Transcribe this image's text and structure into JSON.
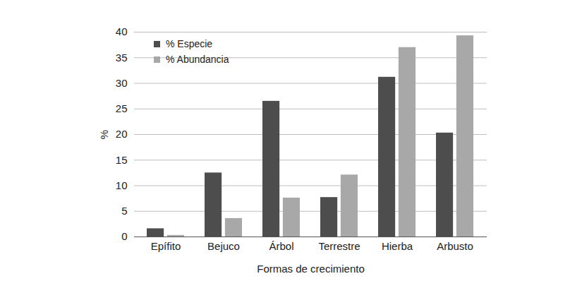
{
  "chart_data": {
    "type": "bar",
    "categories": [
      "Epífito",
      "Bejuco",
      "Árbol",
      "Terrestre",
      "Hierba",
      "Arbusto"
    ],
    "series": [
      {
        "name": "% Especie",
        "color": "#4d4d4d",
        "values": [
          1.6,
          12.5,
          26.5,
          7.7,
          31.2,
          20.3
        ]
      },
      {
        "name": "% Abundancia",
        "color": "#a8a8a8",
        "values": [
          0.3,
          3.6,
          7.6,
          12.1,
          37.0,
          39.3
        ]
      }
    ],
    "x_label": "Formas de crecimiento",
    "y_label": "%",
    "ylim": [
      0,
      40
    ],
    "yticks": [
      0,
      5,
      10,
      15,
      20,
      25,
      30,
      35,
      40
    ],
    "grid": true,
    "legend": "upper left"
  }
}
